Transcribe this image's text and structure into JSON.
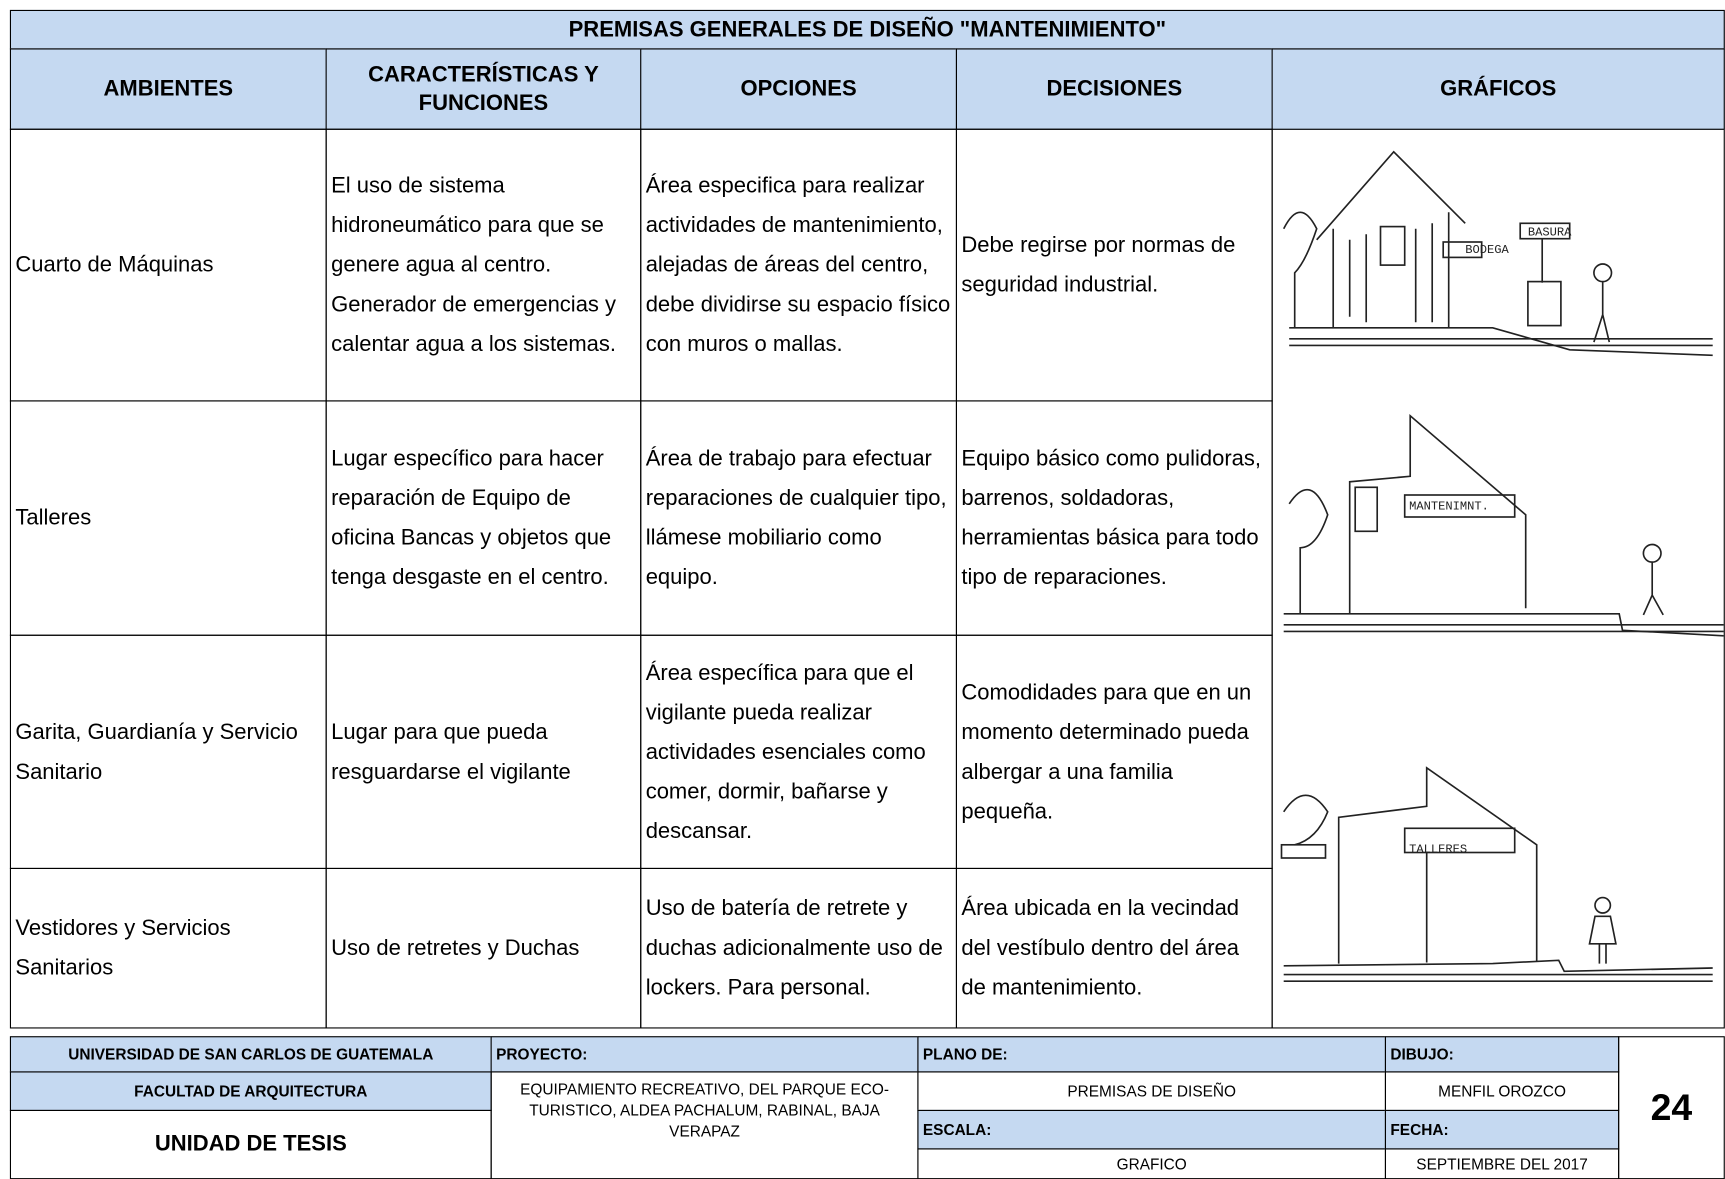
{
  "header": {
    "title": "PREMISAS GENERALES DE DISEÑO \"MANTENIMIENTO\""
  },
  "table": {
    "columns": [
      "AMBIENTES",
      "CARACTERÍSTICAS Y FUNCIONES",
      "OPCIONES",
      "DECISIONES",
      "GRÁFICOS"
    ],
    "rows": [
      [
        "Cuarto de Máquinas",
        "El uso de sistema hidroneumático para que se genere agua al centro. Generador de emergencias y calentar agua a los sistemas.",
        "Área especifica para realizar actividades de mantenimiento, alejadas de áreas del centro, debe dividirse su espacio físico con muros o mallas.",
        "Debe regirse por normas de seguridad industrial."
      ],
      [
        "Talleres",
        "Lugar específico para hacer reparación de Equipo de oficina Bancas y objetos que tenga desgaste en el centro.",
        "Área de trabajo para efectuar reparaciones de cualquier tipo, llámese mobiliario como equipo.",
        "Equipo básico como pulidoras, barrenos, soldadoras, herramientas básica para todo tipo de reparaciones."
      ],
      [
        "Garita, Guardianía y Servicio Sanitario",
        "Lugar para que pueda resguardarse el vigilante",
        "Área específica para que el vigilante pueda realizar actividades esenciales como comer, dormir, bañarse y descansar.",
        "Comodidades para que en un momento determinado pueda albergar a una familia pequeña."
      ],
      [
        "Vestidores y Servicios Sanitarios",
        "Uso de retretes y Duchas",
        "Uso de batería de retrete y duchas adicionalmente uso de lockers. Para personal.",
        "Área ubicada en la vecindad del vestíbulo dentro del área de mantenimiento."
      ]
    ]
  },
  "graphics": {
    "labels": [
      "BODEGA",
      "BASURA",
      "MANTENIMNT.",
      "TALLERES"
    ]
  },
  "footer": {
    "university": "UNIVERSIDAD DE SAN CARLOS DE GUATEMALA",
    "faculty": "FACULTAD DE ARQUITECTURA",
    "unit": "UNIDAD DE TESIS",
    "project_label": "PROYECTO:",
    "project": "EQUIPAMIENTO RECREATIVO, DEL PARQUE ECO-TURISTICO, ALDEA PACHALUM, RABINAL, BAJA VERAPAZ",
    "plan_label": "PLANO DE:",
    "plan": "PREMISAS DE DISEÑO",
    "scale_label": "ESCALA:",
    "scale": "GRAFICO",
    "drawing_label": "DIBUJO:",
    "drawing": "MENFIL OROZCO",
    "date_label": "FECHA:",
    "date": "SEPTIEMBRE DEL 2017",
    "page": "24"
  }
}
